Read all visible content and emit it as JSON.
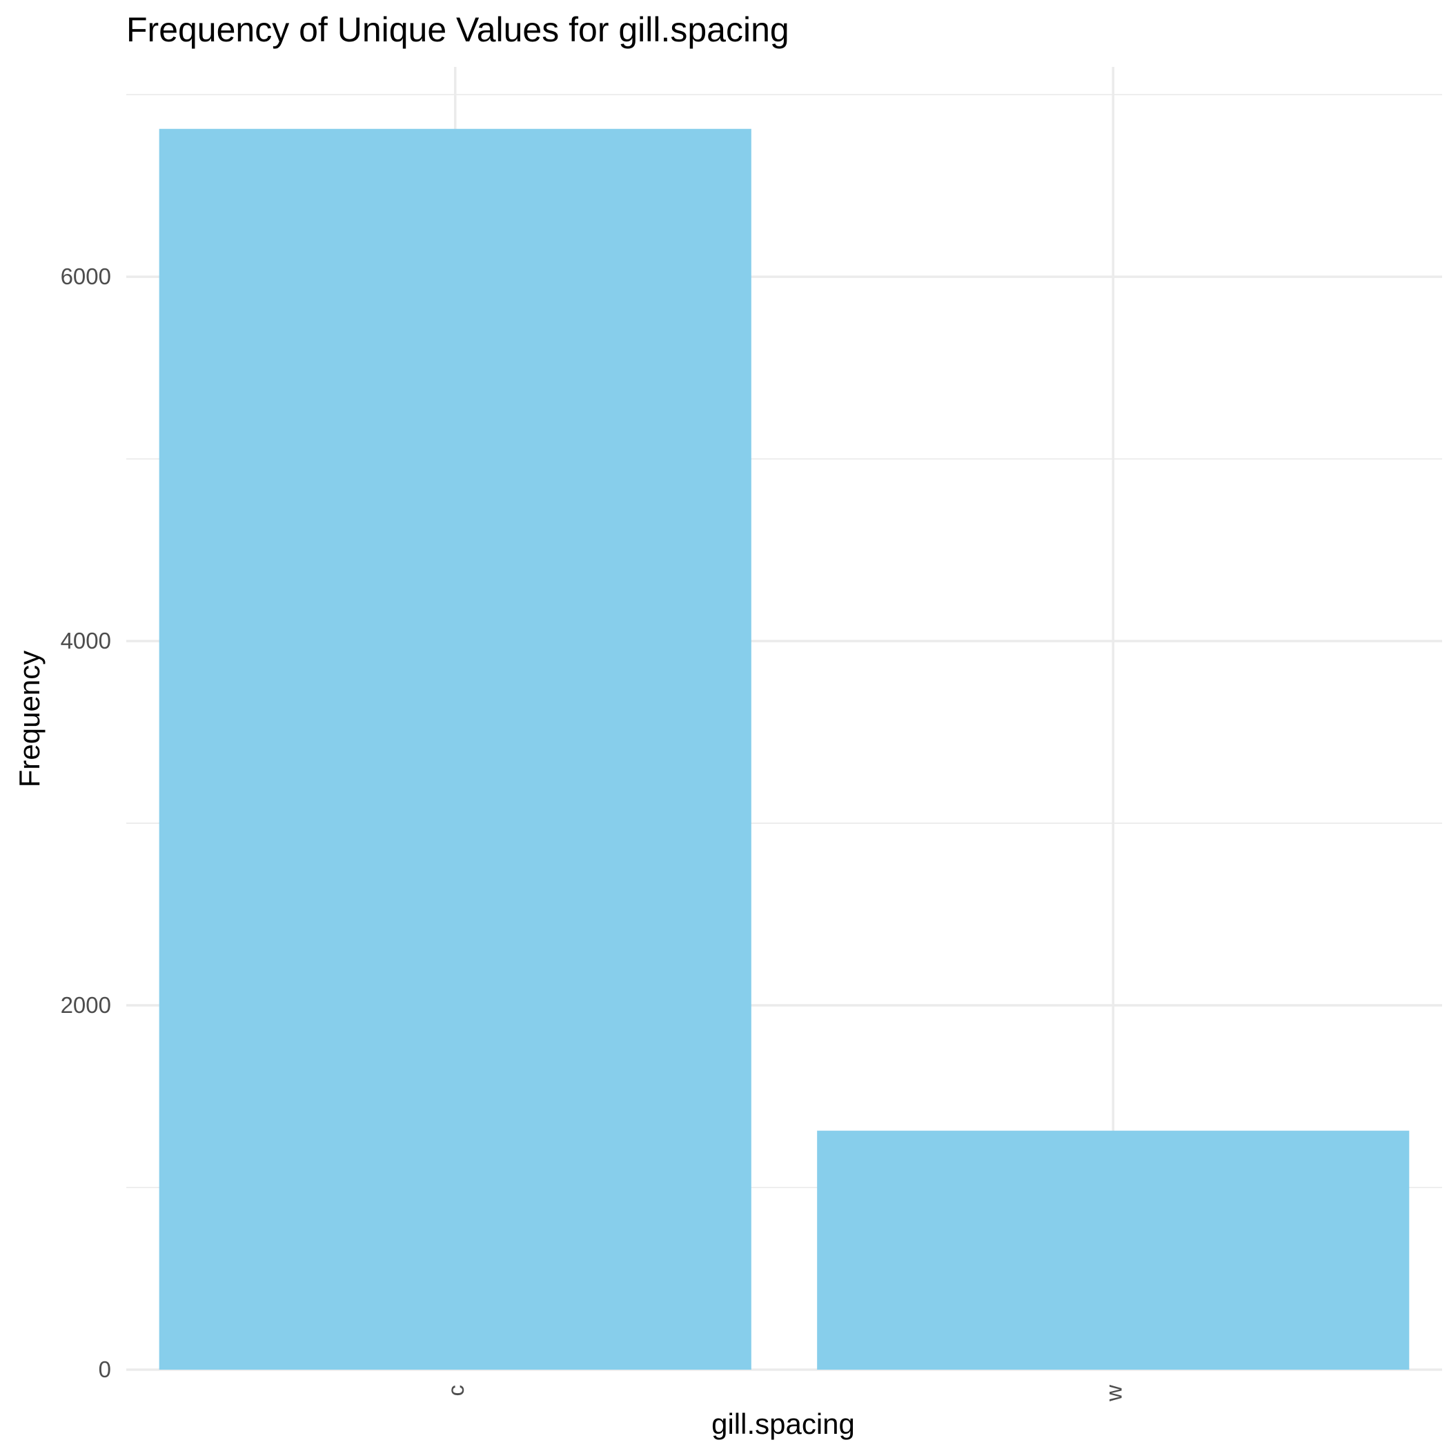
{
  "chart_data": {
    "type": "bar",
    "title": "Frequency of Unique Values for gill.spacing",
    "xlabel": "gill.spacing",
    "ylabel": "Frequency",
    "categories": [
      "c",
      "w"
    ],
    "values": [
      6812,
      1312
    ],
    "ylim": [
      0,
      7152
    ],
    "yticks": [
      0,
      2000,
      4000,
      6000
    ],
    "ytick_labels": [
      "0",
      "2000",
      "4000",
      "6000"
    ],
    "xtick_rotation": 90,
    "bar_color": "#87ceeb",
    "grid": true,
    "legend": "none"
  }
}
